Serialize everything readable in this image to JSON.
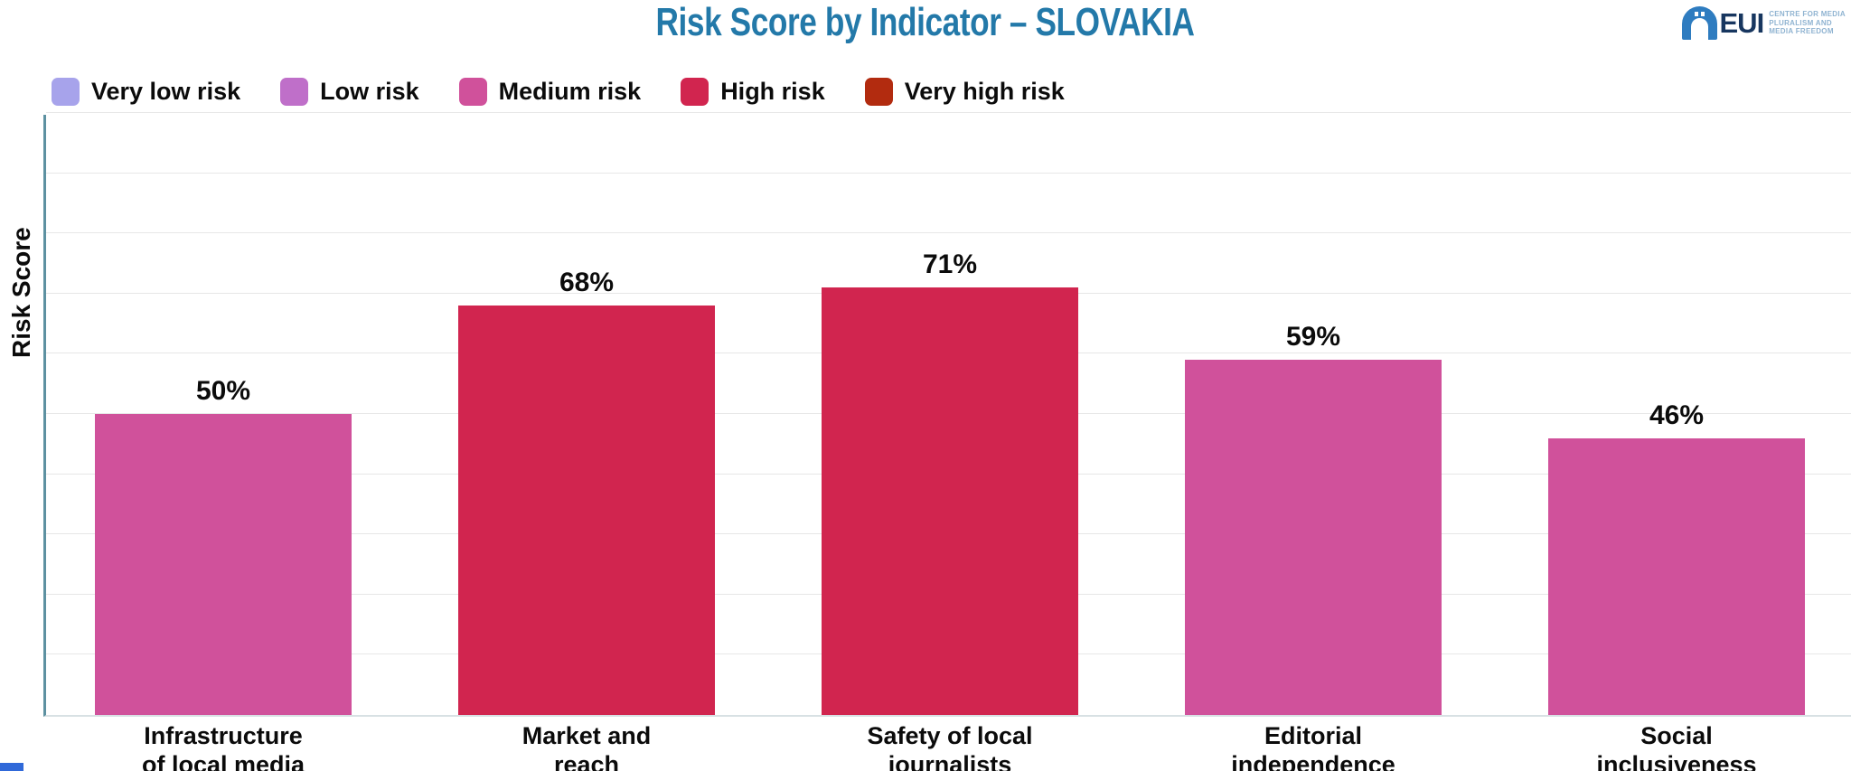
{
  "header": {
    "title": "Risk Score by Indicator – SLOVAKIA",
    "logo": {
      "org": "EUI",
      "tagline_lines": [
        "CENTRE FOR MEDIA",
        "PLURALISM AND",
        "MEDIA FREEDOM"
      ]
    }
  },
  "legend": {
    "items": [
      {
        "label": "Very low risk",
        "color": "#a7a3eb"
      },
      {
        "label": "Low risk",
        "color": "#bf6fc9"
      },
      {
        "label": "Medium risk",
        "color": "#d0519b"
      },
      {
        "label": "High risk",
        "color": "#d1254f"
      },
      {
        "label": "Very high risk",
        "color": "#b22b0f"
      }
    ]
  },
  "chart_data": {
    "type": "bar",
    "title": "Risk Score by Indicator – SLOVAKIA",
    "xlabel": "",
    "ylabel": "Risk Score",
    "ylim": [
      0,
      100
    ],
    "grid": true,
    "gridline_step": 10,
    "y_tick_labels_visible": false,
    "legend_position": "top-left",
    "categories": [
      "Infrastructure of local media",
      "Market and reach",
      "Safety of local journalists",
      "Editorial independence",
      "Social inclusiveness"
    ],
    "category_label_lines": [
      [
        "Infrastructure",
        "of local media"
      ],
      [
        "Market and",
        "reach"
      ],
      [
        "Safety of local",
        "journalists"
      ],
      [
        "Editorial",
        "independence"
      ],
      [
        "Social",
        "inclusiveness"
      ]
    ],
    "values": [
      50,
      68,
      71,
      59,
      46
    ],
    "value_labels": [
      "50%",
      "68%",
      "71%",
      "59%",
      "46%"
    ],
    "bar_risk_levels": [
      "Medium risk",
      "High risk",
      "High risk",
      "Medium risk",
      "Medium risk"
    ],
    "bar_colors": [
      "#d0519b",
      "#d1254f",
      "#d1254f",
      "#d0519b",
      "#d0519b"
    ]
  },
  "colors": {
    "title": "#2379a9",
    "axis_line": "#5d91a1",
    "gridline": "#e7e7e7",
    "baseline": "#d8e1e4",
    "logo_navy": "#17365f",
    "logo_blue": "#2e7cc0",
    "logo_tagline": "#8fb3d1"
  }
}
